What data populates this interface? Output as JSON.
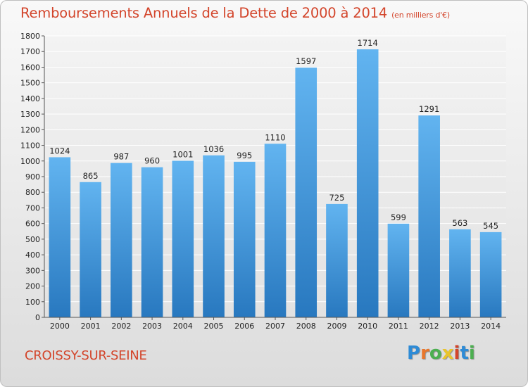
{
  "title": "Remboursements Annuels de la Dette de 2000 à 2014",
  "subtitle": "(en milliers d'€)",
  "city": "CROISSY-SUR-SEINE",
  "logo": {
    "letters": [
      "P",
      "r",
      "o",
      "x",
      "i",
      "t",
      "i"
    ],
    "colors": [
      "#2e8bd6",
      "#e8762c",
      "#4caf50",
      "#e8c42c",
      "#d3452b",
      "#2e8bd6",
      "#4caf50"
    ]
  },
  "chart_data": {
    "type": "bar",
    "categories": [
      "2000",
      "2001",
      "2002",
      "2003",
      "2004",
      "2005",
      "2006",
      "2007",
      "2008",
      "2009",
      "2010",
      "2011",
      "2012",
      "2013",
      "2014"
    ],
    "values": [
      1024,
      865,
      987,
      960,
      1001,
      1036,
      995,
      1110,
      1597,
      725,
      1714,
      599,
      1291,
      563,
      545
    ],
    "data_labels": [
      "1024",
      "865",
      "987",
      "960",
      "1001",
      "1036",
      "995",
      "1110",
      "1597",
      "725",
      "1714",
      "599",
      "1291",
      "563",
      "545"
    ],
    "yticks": [
      0,
      100,
      200,
      300,
      400,
      500,
      600,
      700,
      800,
      900,
      1000,
      1100,
      1200,
      1300,
      1400,
      1500,
      1600,
      1700,
      1800
    ],
    "ylim": [
      0,
      1800
    ],
    "grid": true,
    "bar_color": "#4a9fe0"
  }
}
